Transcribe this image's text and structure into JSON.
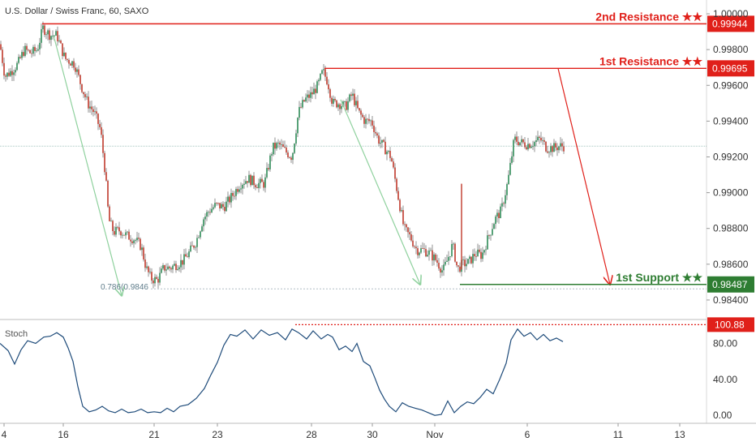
{
  "chart_data": {
    "type": "candlestick",
    "title": "U.S. Dollar / Swiss Franc, 60, SAXO",
    "price_axis": {
      "ticks": [
        "1.00000",
        "0.99800",
        "0.99600",
        "0.99400",
        "0.99200",
        "0.99000",
        "0.98800",
        "0.98600",
        "0.98400"
      ],
      "range": [
        0.983,
        1.0005
      ]
    },
    "time_axis": {
      "ticks": [
        "4",
        "16",
        "21",
        "23",
        "28",
        "30",
        "Nov",
        "6",
        "11",
        "13"
      ]
    },
    "current_price": 0.9926,
    "close_path": [
      [
        0,
        0.9983
      ],
      [
        6,
        0.9965
      ],
      [
        14,
        0.9968
      ],
      [
        22,
        0.9972
      ],
      [
        30,
        0.998
      ],
      [
        38,
        0.9978
      ],
      [
        46,
        0.998
      ],
      [
        53,
        0.9992
      ],
      [
        62,
        0.9988
      ],
      [
        70,
        0.9988
      ],
      [
        80,
        0.9975
      ],
      [
        92,
        0.9972
      ],
      [
        100,
        0.996
      ],
      [
        108,
        0.995
      ],
      [
        116,
        0.9945
      ],
      [
        124,
        0.9935
      ],
      [
        130,
        0.991
      ],
      [
        134,
        0.9885
      ],
      [
        140,
        0.9878
      ],
      [
        148,
        0.9879
      ],
      [
        156,
        0.9876
      ],
      [
        166,
        0.9874
      ],
      [
        174,
        0.987
      ],
      [
        180,
        0.9858
      ],
      [
        186,
        0.9852
      ],
      [
        194,
        0.9851
      ],
      [
        202,
        0.9858
      ],
      [
        210,
        0.9858
      ],
      [
        218,
        0.986
      ],
      [
        226,
        0.9862
      ],
      [
        234,
        0.9867
      ],
      [
        242,
        0.9873
      ],
      [
        250,
        0.9885
      ],
      [
        258,
        0.989
      ],
      [
        266,
        0.9893
      ],
      [
        276,
        0.9892
      ],
      [
        286,
        0.9898
      ],
      [
        296,
        0.9905
      ],
      [
        306,
        0.9908
      ],
      [
        316,
        0.9905
      ],
      [
        326,
        0.9905
      ],
      [
        336,
        0.9925
      ],
      [
        344,
        0.9927
      ],
      [
        352,
        0.9923
      ],
      [
        360,
        0.992
      ],
      [
        368,
        0.9945
      ],
      [
        376,
        0.9952
      ],
      [
        384,
        0.9955
      ],
      [
        392,
        0.996
      ],
      [
        398,
        0.9968
      ],
      [
        404,
        0.9962
      ],
      [
        410,
        0.995
      ],
      [
        418,
        0.995
      ],
      [
        426,
        0.9948
      ],
      [
        434,
        0.9955
      ],
      [
        442,
        0.9945
      ],
      [
        450,
        0.994
      ],
      [
        458,
        0.994
      ],
      [
        466,
        0.993
      ],
      [
        474,
        0.9925
      ],
      [
        482,
        0.992
      ],
      [
        490,
        0.99
      ],
      [
        498,
        0.988
      ],
      [
        506,
        0.9875
      ],
      [
        514,
        0.9868
      ],
      [
        522,
        0.9868
      ],
      [
        530,
        0.9866
      ],
      [
        538,
        0.9862
      ],
      [
        546,
        0.9856
      ],
      [
        552,
        0.9863
      ],
      [
        558,
        0.9871
      ],
      [
        564,
        0.9857
      ],
      [
        570,
        0.986
      ],
      [
        578,
        0.9861
      ],
      [
        586,
        0.9866
      ],
      [
        594,
        0.9865
      ],
      [
        602,
        0.9875
      ],
      [
        610,
        0.9885
      ],
      [
        618,
        0.989
      ],
      [
        626,
        0.9906
      ],
      [
        634,
        0.993
      ],
      [
        642,
        0.9928
      ],
      [
        650,
        0.9927
      ],
      [
        658,
        0.9928
      ],
      [
        666,
        0.993
      ],
      [
        674,
        0.9925
      ],
      [
        682,
        0.9925
      ],
      [
        690,
        0.9926
      ],
      [
        695,
        0.9926
      ]
    ],
    "levels": [
      {
        "name": "2nd Resistance ★★",
        "price_label": "0.99944",
        "price": 0.99944,
        "color": "#e0201a",
        "start_x": 52
      },
      {
        "name": "1st Resistance ★★",
        "price_label": "0.99695",
        "price": 0.99695,
        "color": "#e0201a",
        "start_x": 400
      },
      {
        "name": "1st Support ★★",
        "price_label": "0.98487",
        "price": 0.98487,
        "color": "#2e7d32",
        "start_x": 567
      }
    ],
    "fib_label": "0.786(0.9846",
    "fib_price": 0.98462,
    "annotations": [
      {
        "from": [
          66,
          0.9988
        ],
        "to": [
          150,
          0.98425
        ],
        "color": "#8fd19e"
      },
      {
        "from": [
          420,
          0.9952
        ],
        "to": [
          518,
          0.98487
        ],
        "color": "#8fd19e"
      },
      {
        "from": [
          688,
          0.99695
        ],
        "to": [
          752,
          0.98487
        ],
        "color": "#e0201a"
      }
    ],
    "stoch": {
      "label": "Stoch",
      "ticks": [
        "80.00",
        "40.00",
        "0.00"
      ],
      "range": [
        -7,
        103
      ],
      "level_label": "100.88",
      "level": 100.88,
      "level_color": "#e0201a",
      "values": [
        [
          0,
          80
        ],
        [
          10,
          72
        ],
        [
          18,
          57
        ],
        [
          26,
          73
        ],
        [
          34,
          83
        ],
        [
          44,
          80
        ],
        [
          54,
          87
        ],
        [
          62,
          88
        ],
        [
          70,
          92
        ],
        [
          78,
          87
        ],
        [
          84,
          75
        ],
        [
          90,
          60
        ],
        [
          96,
          32
        ],
        [
          102,
          10
        ],
        [
          110,
          4
        ],
        [
          118,
          6
        ],
        [
          126,
          10
        ],
        [
          134,
          5
        ],
        [
          142,
          3
        ],
        [
          150,
          7
        ],
        [
          158,
          3
        ],
        [
          166,
          4
        ],
        [
          174,
          7
        ],
        [
          182,
          3
        ],
        [
          190,
          4
        ],
        [
          198,
          3
        ],
        [
          206,
          8
        ],
        [
          214,
          4
        ],
        [
          222,
          10
        ],
        [
          232,
          12
        ],
        [
          242,
          19
        ],
        [
          252,
          30
        ],
        [
          260,
          45
        ],
        [
          268,
          59
        ],
        [
          276,
          78
        ],
        [
          284,
          90
        ],
        [
          292,
          88
        ],
        [
          302,
          95
        ],
        [
          312,
          85
        ],
        [
          322,
          95
        ],
        [
          332,
          89
        ],
        [
          342,
          92
        ],
        [
          352,
          84
        ],
        [
          360,
          96
        ],
        [
          368,
          92
        ],
        [
          378,
          85
        ],
        [
          386,
          94
        ],
        [
          396,
          85
        ],
        [
          404,
          90
        ],
        [
          410,
          87
        ],
        [
          418,
          73
        ],
        [
          426,
          77
        ],
        [
          434,
          71
        ],
        [
          440,
          80
        ],
        [
          448,
          60
        ],
        [
          456,
          55
        ],
        [
          462,
          42
        ],
        [
          468,
          28
        ],
        [
          474,
          18
        ],
        [
          480,
          10
        ],
        [
          488,
          4
        ],
        [
          496,
          14
        ],
        [
          504,
          10
        ],
        [
          512,
          8
        ],
        [
          520,
          6
        ],
        [
          528,
          3
        ],
        [
          536,
          0
        ],
        [
          544,
          1
        ],
        [
          552,
          16
        ],
        [
          560,
          3
        ],
        [
          568,
          10
        ],
        [
          576,
          15
        ],
        [
          584,
          13
        ],
        [
          592,
          20
        ],
        [
          600,
          29
        ],
        [
          608,
          24
        ],
        [
          616,
          40
        ],
        [
          624,
          58
        ],
        [
          630,
          84
        ],
        [
          638,
          96
        ],
        [
          646,
          88
        ],
        [
          654,
          92
        ],
        [
          662,
          84
        ],
        [
          670,
          90
        ],
        [
          678,
          83
        ],
        [
          686,
          86
        ],
        [
          694,
          82
        ]
      ]
    }
  }
}
